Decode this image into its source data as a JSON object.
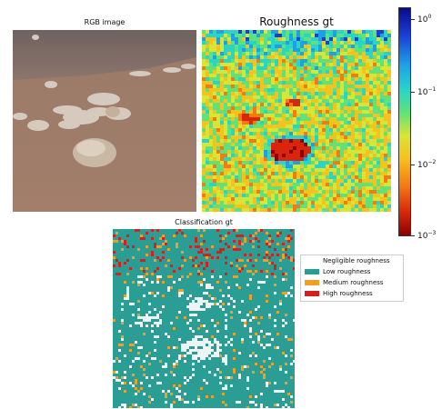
{
  "titles": {
    "rgb": "RGB image",
    "roughness": "Roughness gt",
    "classification": "Classification gt"
  },
  "colorbar": {
    "scale": "log",
    "range": [
      0.001,
      1
    ],
    "ticks": [
      {
        "base": "10",
        "exp": "0"
      },
      {
        "base": "10",
        "exp": "−1"
      },
      {
        "base": "10",
        "exp": "−2"
      },
      {
        "base": "10",
        "exp": "−3"
      }
    ],
    "colormap": [
      "#8a0000",
      "#d9250c",
      "#f37b12",
      "#f6c21c",
      "#d8e534",
      "#5fe27a",
      "#27d6c9",
      "#1ea0e8",
      "#1b3fd6",
      "#0a0a8c"
    ]
  },
  "legend": {
    "items": [
      {
        "label": "Negligible roughness",
        "color": "#ffffff"
      },
      {
        "label": "Low roughness",
        "color": "#2a9d95"
      },
      {
        "label": "Medium roughness",
        "color": "#f0a020"
      },
      {
        "label": "High roughness",
        "color": "#d62020"
      }
    ]
  }
}
